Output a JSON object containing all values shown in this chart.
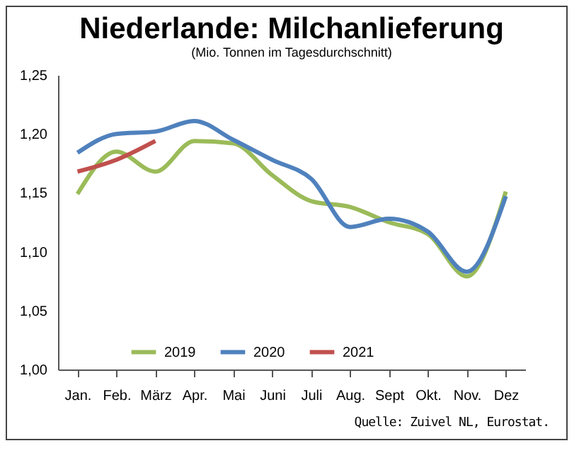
{
  "chart_data": {
    "type": "line",
    "title": "Niederlande: Milchanlieferung",
    "subtitle": "(Mio. Tonnen im Tagesdurchschnitt)",
    "categories": [
      "Jan.",
      "Feb.",
      "März",
      "Apr.",
      "Mai",
      "Juni",
      "Juli",
      "Aug.",
      "Sept",
      "Okt.",
      "Nov.",
      "Dez"
    ],
    "series": [
      {
        "name": "2019",
        "color": "#9bbb59",
        "values": [
          1.149,
          1.185,
          1.168,
          1.194,
          1.192,
          1.165,
          1.143,
          1.138,
          1.125,
          1.115,
          1.079,
          1.151
        ]
      },
      {
        "name": "2020",
        "color": "#4f81bd",
        "values": [
          1.184,
          1.2,
          1.202,
          1.211,
          1.195,
          1.178,
          1.162,
          1.121,
          1.128,
          1.117,
          1.083,
          1.147
        ]
      },
      {
        "name": "2021",
        "color": "#c0504d",
        "values": [
          1.168,
          1.178,
          1.194,
          null,
          null,
          null,
          null,
          null,
          null,
          null,
          null,
          null
        ]
      }
    ],
    "ylim": [
      1.0,
      1.25
    ],
    "yticks": [
      {
        "value": 1.0,
        "label": "1,00"
      },
      {
        "value": 1.05,
        "label": "1,05"
      },
      {
        "value": 1.1,
        "label": "1,10"
      },
      {
        "value": 1.15,
        "label": "1,15"
      },
      {
        "value": 1.2,
        "label": "1,20"
      },
      {
        "value": 1.25,
        "label": "1,25"
      }
    ],
    "legend": "bottom left",
    "grid": false,
    "annotations": [
      "Quelle: Zuivel NL, Eurostat."
    ]
  }
}
